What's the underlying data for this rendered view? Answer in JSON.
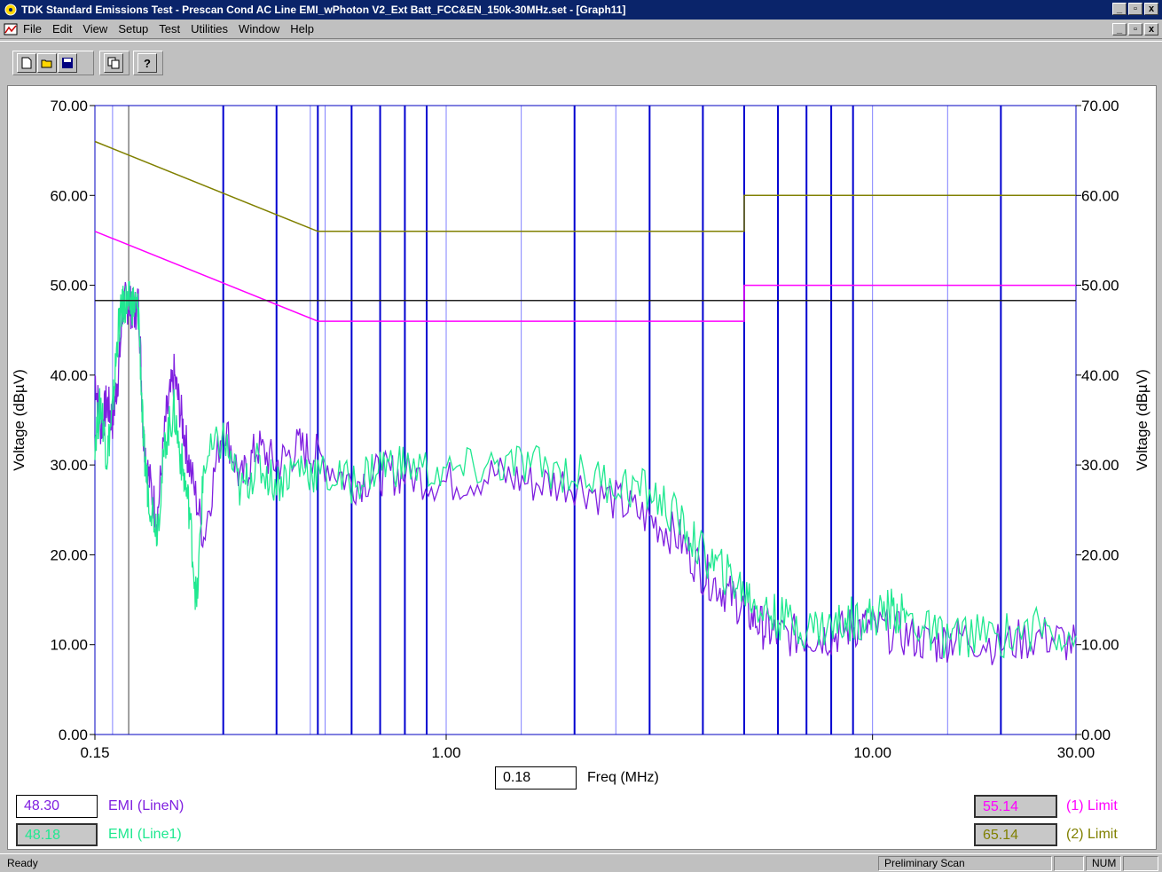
{
  "window": {
    "title": "TDK Standard Emissions Test - Prescan Cond AC Line EMI_wPhoton V2_Ext Batt_FCC&EN_150k-30MHz.set - [Graph11]",
    "controls": [
      "_",
      "▫",
      "x"
    ]
  },
  "menu": {
    "items": [
      "File",
      "Edit",
      "View",
      "Setup",
      "Test",
      "Utilities",
      "Window",
      "Help"
    ]
  },
  "toolbar": {
    "buttons": [
      "new-icon",
      "open-icon",
      "save-icon",
      "copy-icon",
      "help-icon"
    ]
  },
  "chart_data": {
    "type": "line",
    "xscale": "log",
    "xlim": [
      0.15,
      30
    ],
    "ylim": [
      0,
      70
    ],
    "xlabel": "",
    "ylabel": "Voltage (dBµV)",
    "ylabel_right": "Voltage (dBµV)",
    "xticks": [
      "0.15",
      "1.00",
      "10.00",
      "30.00"
    ],
    "yticks": [
      "0.00",
      "10.00",
      "20.00",
      "30.00",
      "40.00",
      "50.00",
      "60.00",
      "70.00"
    ],
    "marker_lines_mhz": [
      0.3,
      0.4,
      0.5,
      0.6,
      0.7,
      0.8,
      0.9,
      2.0,
      3.0,
      4.0,
      5.0,
      6.0,
      7.0,
      8.0,
      9.0,
      20.0
    ],
    "light_lines_mhz": [
      0.165,
      0.48,
      0.52,
      0.6,
      1.0,
      1.5,
      2.5,
      5.0,
      10.0,
      15.0
    ],
    "cursor_x_mhz": 0.18,
    "threshold_y": 48.3,
    "limits": [
      {
        "name": "(1) Limit",
        "color": "#ff00ff",
        "points": [
          [
            0.15,
            56
          ],
          [
            0.5,
            46
          ],
          [
            5,
            46
          ],
          [
            5,
            50
          ],
          [
            30,
            50
          ]
        ]
      },
      {
        "name": "(2) Limit",
        "color": "#808000",
        "points": [
          [
            0.15,
            66
          ],
          [
            0.5,
            56
          ],
          [
            5,
            56
          ],
          [
            5,
            60
          ],
          [
            30,
            60
          ]
        ]
      }
    ],
    "series": [
      {
        "name": "EMI (LineN)",
        "color": "#8020e0",
        "points": [
          [
            0.15,
            40
          ],
          [
            0.155,
            34
          ],
          [
            0.16,
            37
          ],
          [
            0.165,
            35
          ],
          [
            0.17,
            40
          ],
          [
            0.175,
            48
          ],
          [
            0.18,
            48
          ],
          [
            0.185,
            47
          ],
          [
            0.19,
            48
          ],
          [
            0.195,
            33
          ],
          [
            0.2,
            29
          ],
          [
            0.21,
            24
          ],
          [
            0.22,
            35
          ],
          [
            0.23,
            40
          ],
          [
            0.24,
            35
          ],
          [
            0.25,
            30
          ],
          [
            0.27,
            22
          ],
          [
            0.3,
            35
          ],
          [
            0.33,
            28
          ],
          [
            0.36,
            32
          ],
          [
            0.4,
            30
          ],
          [
            0.45,
            32
          ],
          [
            0.5,
            31
          ],
          [
            0.6,
            28
          ],
          [
            0.7,
            29
          ],
          [
            0.8,
            29
          ],
          [
            1.0,
            28
          ],
          [
            1.3,
            29
          ],
          [
            1.6,
            28
          ],
          [
            2.0,
            28
          ],
          [
            2.5,
            26
          ],
          [
            3.0,
            24
          ],
          [
            3.5,
            22
          ],
          [
            4.0,
            18
          ],
          [
            4.5,
            16
          ],
          [
            5.0,
            14
          ],
          [
            5.5,
            12
          ],
          [
            6.0,
            11
          ],
          [
            7.0,
            11
          ],
          [
            8.0,
            11
          ],
          [
            9.0,
            12
          ],
          [
            10.0,
            12
          ],
          [
            12.0,
            11
          ],
          [
            14.0,
            10
          ],
          [
            16.0,
            11
          ],
          [
            20.0,
            10
          ],
          [
            25.0,
            11
          ],
          [
            30.0,
            10
          ]
        ]
      },
      {
        "name": "EMI (Line1)",
        "color": "#20e890",
        "points": [
          [
            0.15,
            33
          ],
          [
            0.155,
            37
          ],
          [
            0.16,
            31
          ],
          [
            0.165,
            36
          ],
          [
            0.17,
            45
          ],
          [
            0.175,
            48
          ],
          [
            0.18,
            48
          ],
          [
            0.185,
            48
          ],
          [
            0.19,
            47
          ],
          [
            0.195,
            32
          ],
          [
            0.2,
            27
          ],
          [
            0.21,
            23
          ],
          [
            0.22,
            33
          ],
          [
            0.23,
            36
          ],
          [
            0.24,
            30
          ],
          [
            0.25,
            25
          ],
          [
            0.26,
            14
          ],
          [
            0.27,
            30
          ],
          [
            0.3,
            33
          ],
          [
            0.33,
            27
          ],
          [
            0.36,
            30
          ],
          [
            0.4,
            28
          ],
          [
            0.45,
            30
          ],
          [
            0.5,
            29
          ],
          [
            0.6,
            28
          ],
          [
            0.7,
            30
          ],
          [
            0.8,
            30
          ],
          [
            1.0,
            29
          ],
          [
            1.3,
            30
          ],
          [
            1.6,
            30
          ],
          [
            2.0,
            29
          ],
          [
            2.5,
            28
          ],
          [
            3.0,
            27
          ],
          [
            3.5,
            24
          ],
          [
            4.0,
            20
          ],
          [
            4.5,
            18
          ],
          [
            5.0,
            16
          ],
          [
            5.5,
            14
          ],
          [
            6.0,
            13
          ],
          [
            7.0,
            12
          ],
          [
            8.0,
            12
          ],
          [
            9.0,
            13
          ],
          [
            10.0,
            13
          ],
          [
            11.0,
            14
          ],
          [
            12.0,
            13
          ],
          [
            14.0,
            11
          ],
          [
            16.0,
            11
          ],
          [
            20.0,
            11
          ],
          [
            25.0,
            12
          ],
          [
            30.0,
            11
          ]
        ]
      }
    ]
  },
  "cursor": {
    "freq_value": "0.18",
    "freq_label": "Freq (MHz)"
  },
  "readouts": {
    "line_n": {
      "value": "48.30",
      "label": "EMI (LineN)",
      "color": "#8020e0"
    },
    "line_1": {
      "value": "48.18",
      "label": "EMI (Line1)",
      "color": "#20e890"
    },
    "limit_1": {
      "value": "55.14",
      "label": "(1) Limit",
      "color": "#ff00ff"
    },
    "limit_2": {
      "value": "65.14",
      "label": "(2) Limit",
      "color": "#808000"
    }
  },
  "status": {
    "left": "Ready",
    "mode": "Preliminary Scan",
    "num": "NUM"
  }
}
